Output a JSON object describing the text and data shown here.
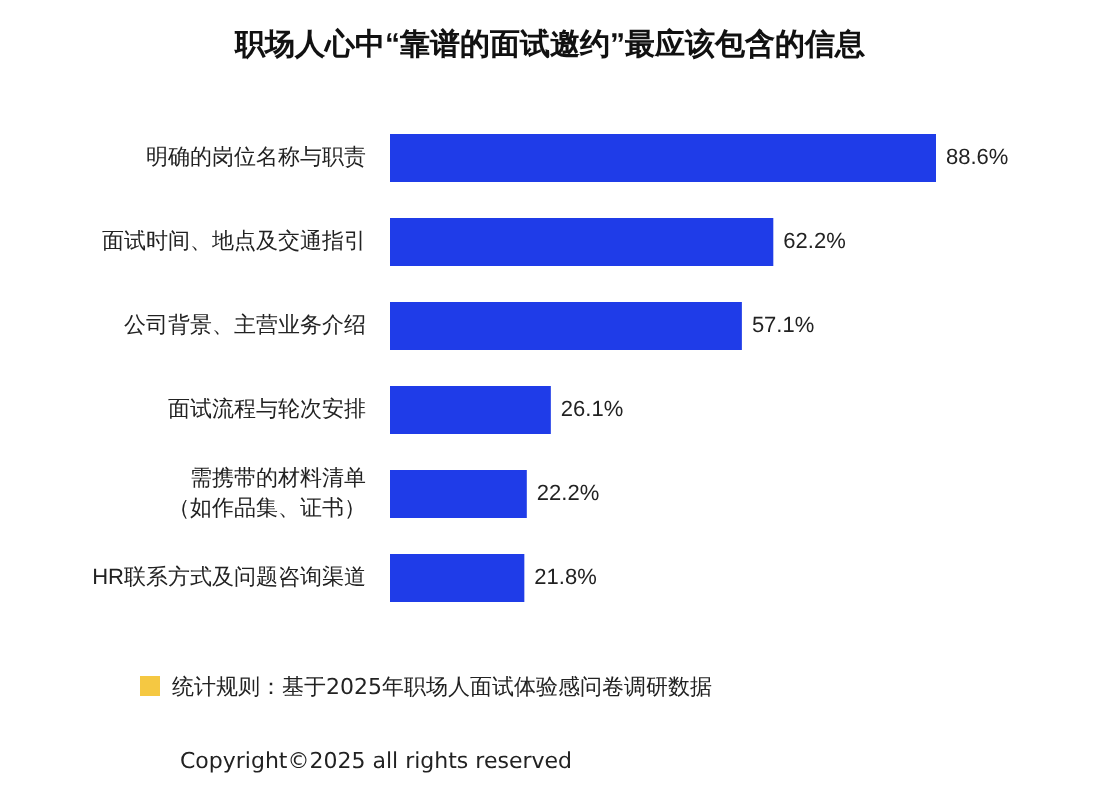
{
  "chart_data": {
    "type": "bar",
    "orientation": "horizontal",
    "title": "职场人心中“靠谱的面试邀约”最应该包含的信息",
    "categories": [
      "明确的岗位名称与职责",
      "面试时间、地点及交通指引",
      "公司背景、主营业务介绍",
      "面试流程与轮次安排",
      "需携带的材料清单（如作品集、证书）",
      "HR联系方式及问题咨询渠道"
    ],
    "values": [
      88.6,
      62.2,
      57.1,
      26.1,
      22.2,
      21.8
    ],
    "value_labels": [
      "88.6%",
      "62.2%",
      "57.1%",
      "26.1%",
      "22.2%",
      "21.8%"
    ],
    "color": "#1f3ce8",
    "grid": false,
    "tick_labels": "y",
    "annotations": [
      "统计规则：基于2025年职场人面试体验感问卷调研数据",
      "Copyright©2025 all rights reserved"
    ]
  }
}
